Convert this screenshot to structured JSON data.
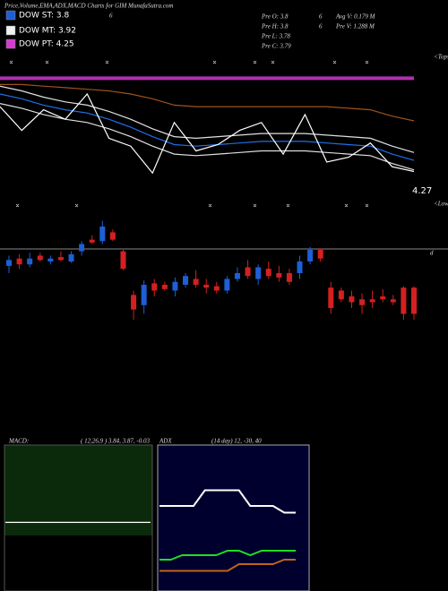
{
  "header": {
    "title": "Price,Volume,EMA,ADX,MACD Charts for GIM MunafaSutra.com",
    "legend": [
      {
        "label": "DOW ST: 3.8",
        "color": "#1e5fd6"
      },
      {
        "label": "DOW MT: 3.92",
        "color": "#f0f0f0"
      },
      {
        "label": "DOW PT: 4.25",
        "color": "#d63ad0"
      }
    ],
    "note": "6",
    "info": [
      [
        "Pre O: 3.8",
        "6",
        "Avg V: 0.179 M"
      ],
      [
        "Pre H: 3.8",
        "6",
        "Pre V: 1.288 M"
      ],
      [
        "Pre L: 3.78"
      ],
      [
        "Pre C: 3.79"
      ]
    ]
  },
  "chart_data": [
    {
      "type": "line",
      "annotations": [
        "<Tops",
        "4.27",
        "<Lows",
        "d"
      ],
      "ylim": [
        3.6,
        4.45
      ],
      "series": [
        {
          "color": "#b02fb0",
          "values": [
            4.38,
            4.38,
            4.38,
            4.38,
            4.38,
            4.38,
            4.38,
            4.38,
            4.38,
            4.38,
            4.38,
            4.38,
            4.38,
            4.38,
            4.38,
            4.38,
            4.38,
            4.38,
            4.38,
            4.38
          ]
        },
        {
          "color": "#a0521a",
          "values": [
            4.34,
            4.34,
            4.33,
            4.32,
            4.31,
            4.3,
            4.28,
            4.25,
            4.21,
            4.2,
            4.2,
            4.2,
            4.2,
            4.2,
            4.2,
            4.2,
            4.19,
            4.18,
            4.14,
            4.11
          ]
        },
        {
          "color": "#e0e0e0",
          "values": [
            4.33,
            4.3,
            4.26,
            4.23,
            4.21,
            4.17,
            4.12,
            4.06,
            4.01,
            4.0,
            4.01,
            4.02,
            4.03,
            4.03,
            4.03,
            4.02,
            4.01,
            4.0,
            3.95,
            3.91
          ]
        },
        {
          "color": "#1e6fe8",
          "values": [
            4.28,
            4.25,
            4.21,
            4.18,
            4.16,
            4.12,
            4.07,
            4.01,
            3.96,
            3.95,
            3.96,
            3.97,
            3.98,
            3.98,
            3.98,
            3.97,
            3.96,
            3.95,
            3.9,
            3.86
          ]
        },
        {
          "color": "#e0e0e0",
          "values": [
            4.22,
            4.19,
            4.15,
            4.12,
            4.1,
            4.06,
            4.01,
            3.95,
            3.9,
            3.89,
            3.9,
            3.91,
            3.92,
            3.92,
            3.92,
            3.91,
            3.9,
            3.89,
            3.84,
            3.8
          ]
        },
        {
          "color": "#ffffff",
          "values": [
            4.2,
            4.05,
            4.18,
            4.12,
            4.28,
            4.0,
            3.95,
            3.78,
            4.1,
            3.92,
            3.96,
            4.05,
            4.1,
            3.9,
            4.15,
            3.85,
            3.88,
            3.97,
            3.82,
            3.79
          ]
        }
      ]
    },
    {
      "type": "candlestick",
      "ylim": [
        3.5,
        4.3
      ],
      "up_color": "#1e5fd6",
      "down_color": "#d42020",
      "open": [
        3.95,
        4.0,
        3.96,
        4.02,
        3.98,
        4.01,
        3.98,
        4.05,
        4.13,
        4.12,
        4.18,
        4.05,
        3.75,
        3.68,
        3.83,
        3.82,
        3.78,
        3.82,
        3.86,
        3.82,
        3.81,
        3.78,
        3.86,
        3.94,
        3.86,
        3.93,
        3.9,
        3.9,
        3.9,
        3.98,
        4.06,
        3.8,
        3.78,
        3.74,
        3.72,
        3.72,
        3.74,
        3.72,
        3.8,
        3.8
      ],
      "high": [
        4.02,
        4.03,
        4.04,
        4.04,
        4.02,
        4.05,
        4.05,
        4.12,
        4.16,
        4.26,
        4.2,
        4.06,
        3.78,
        3.85,
        3.86,
        3.84,
        3.87,
        3.9,
        3.92,
        3.86,
        3.84,
        3.88,
        3.94,
        3.99,
        3.96,
        3.98,
        3.95,
        3.93,
        4.02,
        4.08,
        4.07,
        3.84,
        3.8,
        3.78,
        3.76,
        3.78,
        3.79,
        3.75,
        3.81,
        3.81
      ],
      "low": [
        3.9,
        3.93,
        3.94,
        3.98,
        3.96,
        3.98,
        3.97,
        4.02,
        4.1,
        4.1,
        4.12,
        3.92,
        3.58,
        3.62,
        3.74,
        3.78,
        3.74,
        3.8,
        3.8,
        3.76,
        3.76,
        3.76,
        3.84,
        3.86,
        3.82,
        3.86,
        3.84,
        3.82,
        3.86,
        3.96,
        3.98,
        3.62,
        3.7,
        3.66,
        3.62,
        3.66,
        3.7,
        3.68,
        3.58,
        3.58
      ],
      "close": [
        3.99,
        3.96,
        4.0,
        3.99,
        4.0,
        3.99,
        4.03,
        4.1,
        4.11,
        4.22,
        4.13,
        3.93,
        3.65,
        3.82,
        3.78,
        3.79,
        3.84,
        3.88,
        3.82,
        3.8,
        3.78,
        3.86,
        3.9,
        3.88,
        3.94,
        3.88,
        3.87,
        3.84,
        3.98,
        4.06,
        4.0,
        3.66,
        3.72,
        3.7,
        3.68,
        3.7,
        3.72,
        3.7,
        3.62,
        3.62
      ]
    },
    {
      "type": "line",
      "title": "MACD:",
      "subtitle": "( 12,26,9 ) 3.84, 3.87, -0.03",
      "ylim": [
        -0.5,
        0.5
      ],
      "series": [
        {
          "color": "#ffffff",
          "values": [
            -0.03,
            -0.03,
            -0.03,
            -0.03,
            -0.03,
            -0.03,
            -0.03,
            -0.03,
            -0.03,
            -0.03,
            -0.03,
            -0.03,
            -0.03,
            -0.03,
            -0.03,
            -0.03,
            -0.03,
            -0.03,
            -0.03,
            -0.03
          ]
        }
      ]
    },
    {
      "type": "line",
      "title": "ADX",
      "subtitle": "(14 day) 12, -30, 40",
      "ylim": [
        0,
        60
      ],
      "series": [
        {
          "color": "#ffffff",
          "values": [
            36,
            36,
            36,
            36,
            43,
            43,
            43,
            43,
            36,
            36,
            36,
            33,
            33
          ]
        },
        {
          "color": "#22dd22",
          "values": [
            12,
            12,
            14,
            14,
            14,
            14,
            16,
            16,
            14,
            16,
            16,
            16,
            16
          ]
        },
        {
          "color": "#c0641a",
          "values": [
            7,
            7,
            7,
            7,
            7,
            7,
            7,
            10,
            10,
            10,
            10,
            12,
            12
          ]
        }
      ]
    }
  ]
}
